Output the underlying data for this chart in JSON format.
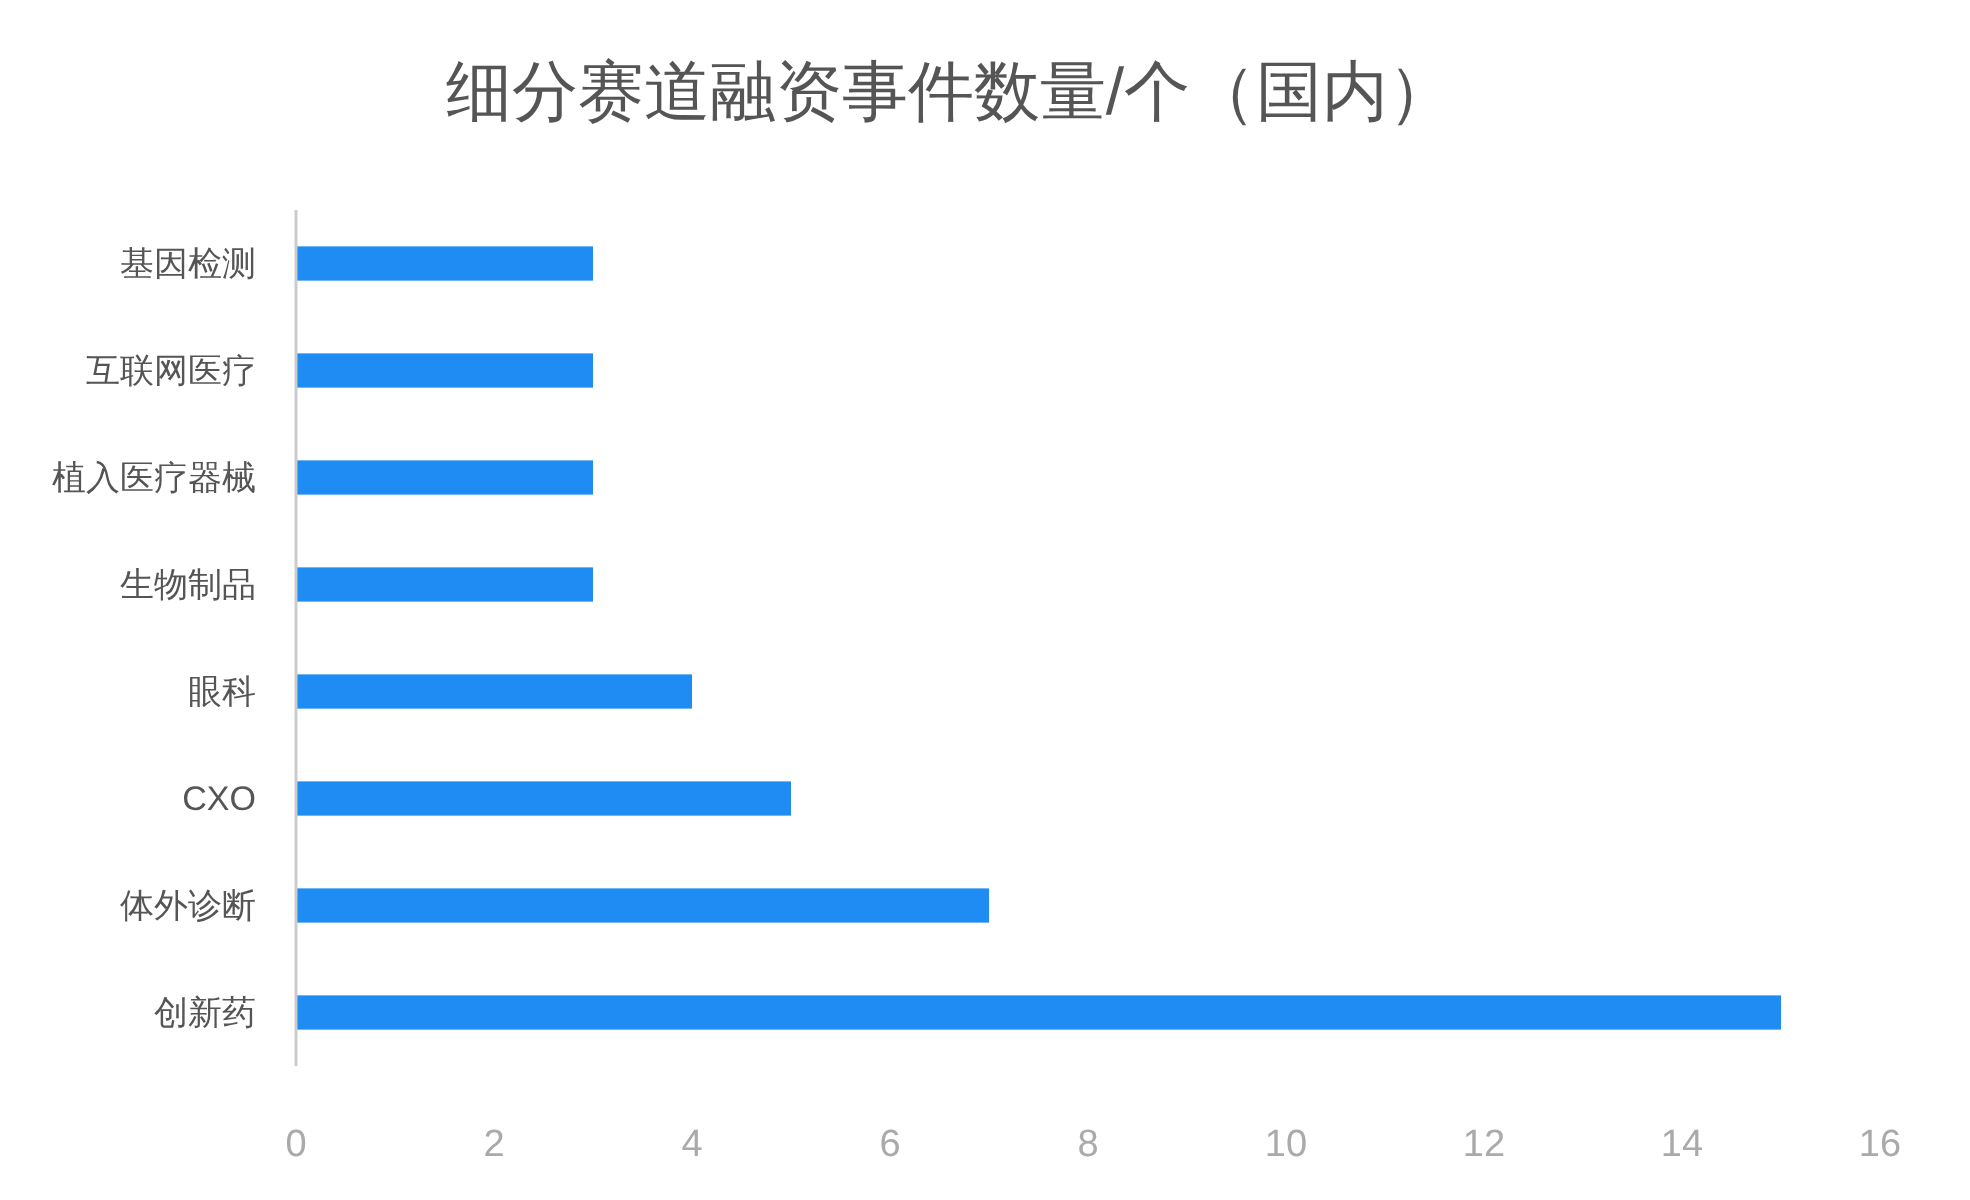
{
  "chart_data": {
    "type": "bar",
    "orientation": "horizontal",
    "title": "细分赛道融资事件数量/个（国内）",
    "categories": [
      "基因检测",
      "互联网医疗",
      "植入医疗器械",
      "生物制品",
      "眼科",
      "CXO",
      "体外诊断",
      "创新药"
    ],
    "values": [
      3,
      3,
      3,
      3,
      4,
      5,
      7,
      15
    ],
    "color": "#1f8cf3",
    "xlim": [
      0,
      16
    ],
    "xticks": [
      0,
      2,
      4,
      6,
      8,
      10,
      12,
      14,
      16
    ]
  }
}
